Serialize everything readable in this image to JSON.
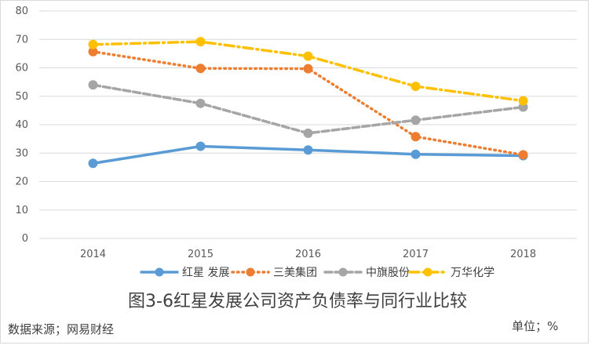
{
  "chart_data": {
    "type": "line",
    "categories": [
      "2014",
      "2015",
      "2016",
      "2017",
      "2018"
    ],
    "ylim": [
      0,
      80
    ],
    "yticks": [
      "0",
      "10",
      "20",
      "30",
      "40",
      "50",
      "60",
      "70",
      "80"
    ],
    "grid": true,
    "legend_position": "bottom",
    "series": [
      {
        "name": "红星 发展",
        "values": [
          26.4,
          32.4,
          31.1,
          29.6,
          29.1
        ],
        "color": "#5b9bd5",
        "style": "solid"
      },
      {
        "name": "三美集团",
        "values": [
          65.7,
          59.8,
          59.7,
          35.8,
          29.4
        ],
        "color": "#ed7d31",
        "style": "dotted"
      },
      {
        "name": "中旗股份",
        "values": [
          54.0,
          47.5,
          37.0,
          41.6,
          46.2
        ],
        "color": "#a5a5a5",
        "style": "dashed"
      },
      {
        "name": "万华化学",
        "values": [
          68.2,
          69.2,
          64.1,
          53.5,
          48.4
        ],
        "color": "#ffc000",
        "style": "dashdot"
      }
    ]
  },
  "caption": "图3-6红星发展公司资产负债率与同行业比较",
  "source": "数据来源；网易财经",
  "unit": "单位；%"
}
